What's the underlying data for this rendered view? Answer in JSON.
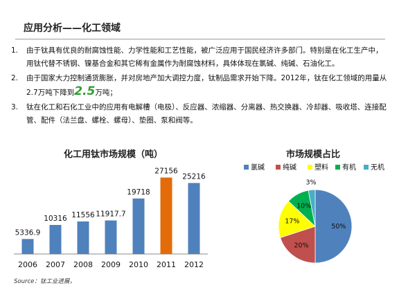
{
  "slide": {
    "title": "应用分析——化工领域",
    "items": [
      {
        "num": "1.",
        "text": "由于钛具有优良的耐腐蚀性能、力学性能和工艺性能，被广泛应用于国民经济许多部门。特别是在化工生产中，用钛代替不锈钢、镍基合金和其它稀有金属作为耐腐蚀材料，具体体现在氯碱、纯碱、石油化工。"
      },
      {
        "num": "2.",
        "text_before": "由于国家大力控制通货膨胀，并对房地产加大调控力度，钛制品需求开始下降。2012年，钛在化工领域的用量从2.7万吨下降到",
        "highlight": "2.5",
        "text_after": "万吨；"
      },
      {
        "num": "3.",
        "text": "钛在化工和石化工业中的应用有电解槽（电极）、反应器、浓缩器、分离器、热交换器、冷却器、吸收塔、连接配管、配件（法兰盘、螺栓、螺母）、垫圈、泵和阀等。"
      }
    ],
    "source": "Source：钛工业进展，"
  },
  "chart_data": [
    {
      "type": "bar",
      "title": "化工用钛市场规模（吨）",
      "categories": [
        "2006",
        "2007",
        "2008",
        "2009",
        "2010",
        "2011",
        "2012"
      ],
      "values": [
        5336.9,
        10316,
        11556,
        11917.7,
        19718,
        27156,
        25216
      ],
      "value_labels": [
        "5336.9",
        "10316",
        "11556",
        "11917.7",
        "19718",
        "27156",
        "25216"
      ],
      "colors": [
        "#4f81bd",
        "#4f81bd",
        "#4f81bd",
        "#4f81bd",
        "#4f81bd",
        "#e36c0a",
        "#4f81bd"
      ],
      "ylim": [
        0,
        29000
      ],
      "grid": false,
      "xlabel": "",
      "ylabel": ""
    },
    {
      "type": "pie",
      "title": "市场规模占比",
      "labels": [
        "氯碱",
        "纯碱",
        "塑料",
        "有机",
        "无机"
      ],
      "values": [
        50,
        20,
        17,
        10,
        3
      ],
      "value_labels": [
        "50%",
        "20%",
        "17%",
        "10%",
        "3%"
      ],
      "colors": [
        "#4f81bd",
        "#c0504d",
        "#ffff00",
        "#00b050",
        "#4bacc6"
      ],
      "legend": "top"
    }
  ]
}
